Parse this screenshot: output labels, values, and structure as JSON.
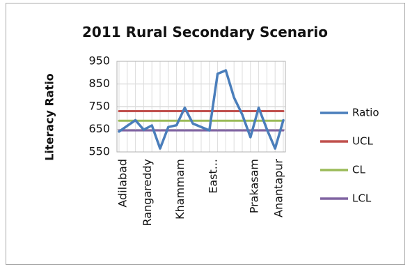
{
  "chart_data": {
    "type": "line",
    "title": "2011 Rural Secondary Scenario",
    "ylabel": "Literacy Ratio",
    "xlabel": "",
    "ylim": [
      550,
      950
    ],
    "yticks": [
      550,
      650,
      750,
      850,
      950
    ],
    "grid": true,
    "legend_position": "right",
    "categories": [
      "Adilabad",
      "",
      "",
      "Rangareddy",
      "",
      "",
      "",
      "Khammam",
      "",
      "",
      "",
      "East...",
      "",
      "",
      "",
      "",
      "Prakasam",
      "",
      "",
      "Anantapur",
      ""
    ],
    "series": [
      {
        "name": "Ratio",
        "color": "#4a7ebb",
        "values": [
          640,
          665,
          690,
          648,
          667,
          565,
          660,
          668,
          745,
          675,
          660,
          645,
          895,
          910,
          790,
          715,
          615,
          745,
          650,
          565,
          690
        ]
      },
      {
        "name": "UCL",
        "color": "#c0504d",
        "values": [
          730,
          730,
          730,
          730,
          730,
          730,
          730,
          730,
          730,
          730,
          730,
          730,
          730,
          730,
          730,
          730,
          730,
          730,
          730,
          730,
          730
        ]
      },
      {
        "name": "CL",
        "color": "#9bbb59",
        "values": [
          688,
          688,
          688,
          688,
          688,
          688,
          688,
          688,
          688,
          688,
          688,
          688,
          688,
          688,
          688,
          688,
          688,
          688,
          688,
          688,
          688
        ]
      },
      {
        "name": "LCL",
        "color": "#8064a2",
        "values": [
          645,
          645,
          645,
          645,
          645,
          645,
          645,
          645,
          645,
          645,
          645,
          645,
          645,
          645,
          645,
          645,
          645,
          645,
          645,
          645,
          645
        ]
      }
    ]
  }
}
